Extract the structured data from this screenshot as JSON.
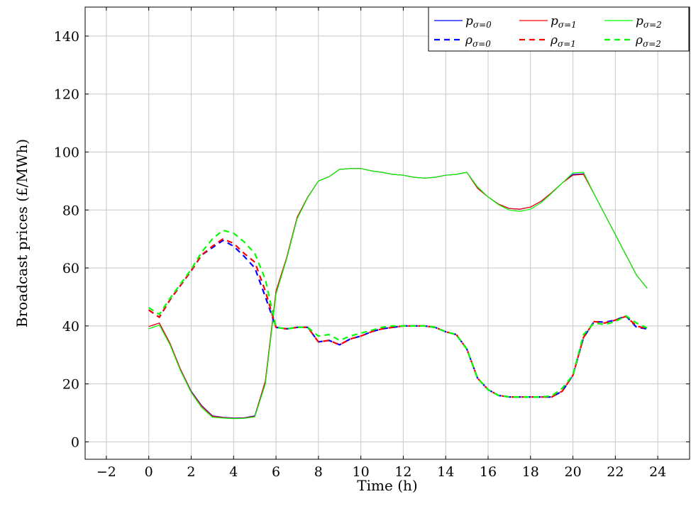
{
  "chart_data": {
    "type": "line",
    "xlabel": "Time (h)",
    "ylabel": "Broadcast prices (£/MWh)",
    "xlim": [
      -3,
      25.5
    ],
    "ylim": [
      -6,
      150
    ],
    "xticks": [
      -2,
      0,
      2,
      4,
      6,
      8,
      10,
      12,
      14,
      16,
      18,
      20,
      22,
      24
    ],
    "yticks": [
      0,
      20,
      40,
      60,
      80,
      100,
      120,
      140
    ],
    "grid": true,
    "legend_position": "top-right",
    "series": [
      {
        "name": "pσ=0",
        "base": "p",
        "sub": "σ=0",
        "color": "#0000ff",
        "dash": "solid",
        "x": [
          0,
          0.5,
          1,
          1.5,
          2,
          2.5,
          3,
          3.5,
          4,
          4.5,
          5,
          5.5,
          6,
          6.5,
          7,
          7.5,
          8,
          8.5,
          9,
          9.5,
          10,
          10.5,
          11,
          11.5,
          12,
          12.5,
          13,
          13.5,
          14,
          14.5,
          15,
          15.5,
          16,
          16.5,
          17,
          17.5,
          18,
          18.5,
          19,
          19.5,
          20,
          20.5,
          21,
          21.5,
          22,
          22.5,
          23,
          23.5
        ],
        "y": [
          39.8,
          41,
          34,
          25,
          17.5,
          12.5,
          9,
          8.5,
          8.2,
          8.3,
          9,
          21,
          52,
          63.5,
          77.5,
          84.5,
          90,
          91.5,
          94,
          94.3,
          94.3,
          93.5,
          93,
          92.3,
          92,
          91.3,
          91,
          91.3,
          92,
          92.3,
          93,
          87.5,
          84.5,
          82,
          80.5,
          80.3,
          81,
          83,
          86,
          89.3,
          92.3,
          92.5,
          85.5,
          78.5,
          71.5,
          64.5,
          57.5,
          53
        ]
      },
      {
        "name": "pσ=1",
        "base": "p",
        "sub": "σ=1",
        "color": "#ff0000",
        "dash": "solid",
        "x": [
          0,
          0.5,
          1,
          1.5,
          2,
          2.5,
          3,
          3.5,
          4,
          4.5,
          5,
          5.5,
          6,
          6.5,
          7,
          7.5,
          8,
          8.5,
          9,
          9.5,
          10,
          10.5,
          11,
          11.5,
          12,
          12.5,
          13,
          13.5,
          14,
          14.5,
          15,
          15.5,
          16,
          16.5,
          17,
          17.5,
          18,
          18.5,
          19,
          19.5,
          20,
          20.5,
          21,
          21.5,
          22,
          22.5,
          23,
          23.5
        ],
        "y": [
          39.8,
          41,
          34,
          25,
          17.3,
          12.3,
          8.8,
          8.4,
          8.1,
          8.2,
          8.8,
          21,
          52,
          63.5,
          77.5,
          84.5,
          90,
          91.5,
          94,
          94.3,
          94.3,
          93.5,
          93,
          92.3,
          92,
          91.3,
          91,
          91.3,
          92,
          92.3,
          93,
          87.5,
          84.5,
          82,
          80.5,
          80.3,
          81,
          83,
          86,
          89.3,
          92,
          92.3,
          85.5,
          78.5,
          71.5,
          64.5,
          57.5,
          53
        ]
      },
      {
        "name": "pσ=2",
        "base": "p",
        "sub": "σ=2",
        "color": "#00ff00",
        "dash": "solid",
        "x": [
          0,
          0.5,
          1,
          1.5,
          2,
          2.5,
          3,
          3.5,
          4,
          4.5,
          5,
          5.5,
          6,
          6.5,
          7,
          7.5,
          8,
          8.5,
          9,
          9.5,
          10,
          10.5,
          11,
          11.5,
          12,
          12.5,
          13,
          13.5,
          14,
          14.5,
          15,
          15.5,
          16,
          16.5,
          17,
          17.5,
          18,
          18.5,
          19,
          19.5,
          20,
          20.5,
          21,
          21.5,
          22,
          22.5,
          23,
          23.5
        ],
        "y": [
          39,
          40.3,
          33.5,
          24.5,
          17,
          11.8,
          8.5,
          8.2,
          8,
          8.1,
          8.6,
          20,
          51,
          63,
          77,
          84.3,
          90,
          91.5,
          94,
          94.3,
          94.3,
          93.5,
          93,
          92.3,
          92,
          91.3,
          91,
          91.3,
          92,
          92.3,
          93,
          88,
          84.5,
          81.8,
          80,
          79.5,
          80.3,
          82.5,
          85.8,
          89.3,
          92.8,
          93,
          85.5,
          78.5,
          71.5,
          64.5,
          57.5,
          53
        ]
      },
      {
        "name": "ρσ=0",
        "base": "ρ",
        "sub": "σ=0",
        "color": "#0000ff",
        "dash": "dashed",
        "x": [
          0,
          0.5,
          1,
          1.5,
          2,
          2.5,
          3,
          3.5,
          4,
          4.5,
          5,
          5.5,
          6,
          6.5,
          7,
          7.5,
          8,
          8.5,
          9,
          9.5,
          10,
          10.5,
          11,
          11.5,
          12,
          12.5,
          13,
          13.5,
          14,
          14.5,
          15,
          15.5,
          16,
          16.5,
          17,
          17.5,
          18,
          18.5,
          19,
          19.5,
          20,
          20.5,
          21,
          21.5,
          22,
          22.5,
          23,
          23.5
        ],
        "y": [
          45.5,
          43,
          49,
          54,
          59,
          64.5,
          67,
          69.5,
          67.5,
          64,
          60,
          50,
          39.5,
          39,
          39.5,
          39.5,
          34.5,
          35,
          33.5,
          35.5,
          36.5,
          38,
          39,
          39.5,
          40,
          40,
          40,
          39.5,
          38,
          37,
          32,
          22,
          18,
          16,
          15.5,
          15.5,
          15.5,
          15.5,
          15.5,
          17.5,
          23,
          36,
          41.5,
          41.3,
          42,
          43.5,
          39.5,
          39
        ]
      },
      {
        "name": "ρσ=1",
        "base": "ρ",
        "sub": "σ=1",
        "color": "#ff0000",
        "dash": "dashed",
        "x": [
          0,
          0.5,
          1,
          1.5,
          2,
          2.5,
          3,
          3.5,
          4,
          4.5,
          5,
          5.5,
          6,
          6.5,
          7,
          7.5,
          8,
          8.5,
          9,
          9.5,
          10,
          10.5,
          11,
          11.5,
          12,
          12.5,
          13,
          13.5,
          14,
          14.5,
          15,
          15.5,
          16,
          16.5,
          17,
          17.5,
          18,
          18.5,
          19,
          19.5,
          20,
          20.5,
          21,
          21.5,
          22,
          22.5,
          23,
          23.5
        ],
        "y": [
          45.5,
          43,
          49,
          54,
          59,
          64.5,
          67.5,
          70,
          68.5,
          65,
          62,
          52,
          39.5,
          39,
          39.5,
          39.5,
          34.5,
          35,
          33.5,
          35.5,
          36.5,
          38,
          39,
          39.5,
          40,
          40,
          40,
          39.5,
          38,
          37,
          32,
          22,
          18,
          16,
          15.5,
          15.5,
          15.5,
          15.5,
          15.5,
          17.5,
          23,
          36,
          41.5,
          41,
          42,
          43.3,
          40,
          39
        ]
      },
      {
        "name": "ρσ=2",
        "base": "ρ",
        "sub": "σ=2",
        "color": "#00ff00",
        "dash": "dashed",
        "x": [
          0,
          0.5,
          1,
          1.5,
          2,
          2.5,
          3,
          3.5,
          4,
          4.5,
          5,
          5.5,
          6,
          6.5,
          7,
          7.5,
          8,
          8.5,
          9,
          9.5,
          10,
          10.5,
          11,
          11.5,
          12,
          12.5,
          13,
          13.5,
          14,
          14.5,
          15,
          15.5,
          16,
          16.5,
          17,
          17.5,
          18,
          18.5,
          19,
          19.5,
          20,
          20.5,
          21,
          21.5,
          22,
          22.5,
          23,
          23.5
        ],
        "y": [
          46.3,
          44,
          49.5,
          54.5,
          59.5,
          65.5,
          70,
          73,
          72,
          69,
          65,
          56,
          39.5,
          39,
          39.5,
          39.5,
          36.5,
          37,
          35,
          36.5,
          37.5,
          38.5,
          39.5,
          40,
          40,
          40,
          40,
          39.5,
          38,
          37,
          32,
          22,
          18,
          16,
          15.5,
          15.5,
          15.5,
          15.5,
          15.8,
          18.5,
          23,
          37,
          41,
          40.5,
          41.5,
          43.5,
          41,
          39.3
        ]
      }
    ]
  }
}
